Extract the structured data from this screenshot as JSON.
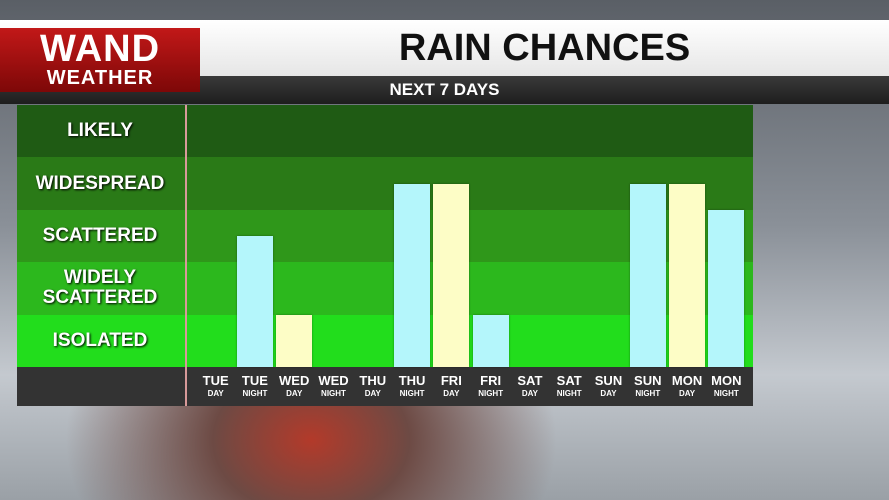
{
  "logo": {
    "line1": "WAND",
    "line2": "WEATHER"
  },
  "chart_data": {
    "type": "bar",
    "title": "RAIN CHANCES",
    "subtitle": "NEXT 7 DAYS",
    "categories": [
      "TUE",
      "TUE",
      "WED",
      "WED",
      "THU",
      "THU",
      "FRI",
      "FRI",
      "SAT",
      "SAT",
      "SUN",
      "SUN",
      "MON",
      "MON"
    ],
    "category_sublabels": [
      "DAY",
      "NIGHT",
      "DAY",
      "NIGHT",
      "DAY",
      "NIGHT",
      "DAY",
      "NIGHT",
      "DAY",
      "NIGHT",
      "DAY",
      "NIGHT",
      "DAY",
      "NIGHT"
    ],
    "values": [
      0,
      2.5,
      1,
      0,
      0,
      3.5,
      3.5,
      1,
      0,
      0,
      0,
      3.5,
      3.5,
      3
    ],
    "colors": [
      "#fdfdc6",
      "#b4f6fb",
      "#fdfdc6",
      "#b4f6fb",
      "#fdfdc6",
      "#b4f6fb",
      "#fdfdc6",
      "#b4f6fb",
      "#fdfdc6",
      "#b4f6fb",
      "#fdfdc6",
      "#b4f6fb",
      "#fdfdc6",
      "#b4f6fb"
    ],
    "ylim": [
      0,
      5
    ],
    "yticks": [
      {
        "value": 0.5,
        "label": "ISOLATED"
      },
      {
        "value": 1.5,
        "label": "WIDELY SCATTERED"
      },
      {
        "value": 2.5,
        "label": "SCATTERED"
      },
      {
        "value": 3.5,
        "label": "WIDESPREAD"
      },
      {
        "value": 4.5,
        "label": "LIKELY"
      }
    ],
    "band_colors": [
      "#22dd1c",
      "#2cb81d",
      "#2f971a",
      "#2a7a17",
      "#1f5b14"
    ]
  }
}
